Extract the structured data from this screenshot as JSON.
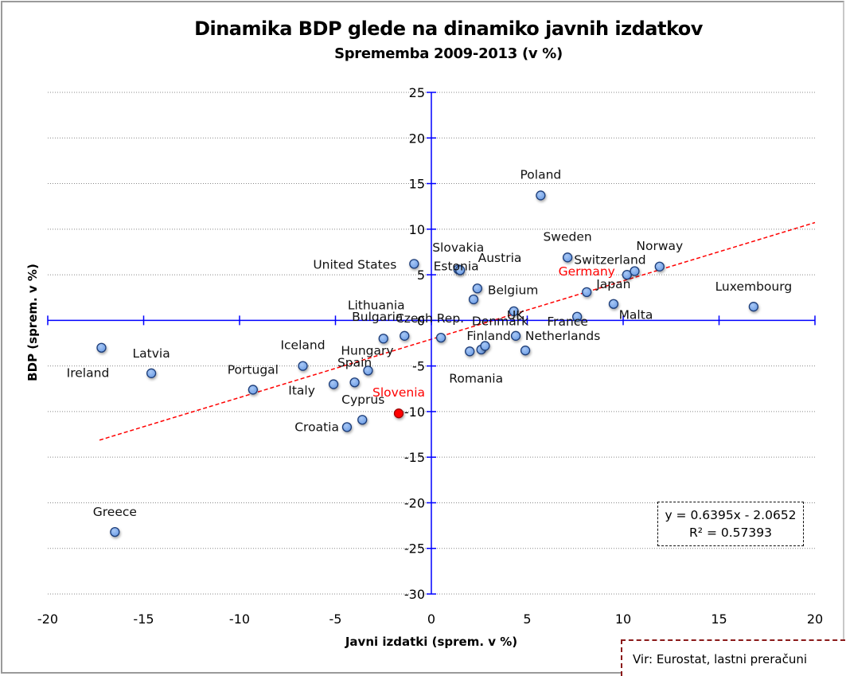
{
  "chart_data": {
    "type": "scatter",
    "title": "Dinamika BDP glede na dinamiko javnih izdatkov",
    "subtitle": "Sprememba 2009-2013 (v %)",
    "xlabel": "Javni izdatki (sprem. v %)",
    "ylabel": "BDP (sprem. v %)",
    "xlim": [
      -20,
      20
    ],
    "ylim": [
      -30,
      25
    ],
    "x_ticks": [
      -20,
      -15,
      -10,
      -5,
      0,
      5,
      10,
      15,
      20
    ],
    "y_ticks": [
      25,
      20,
      15,
      10,
      5,
      0,
      -5,
      -10,
      -15,
      -20,
      -25,
      -30
    ],
    "grid": "horizontal dotted",
    "points": [
      {
        "label": "Ireland",
        "x": -17.2,
        "y": -3.0
      },
      {
        "label": "Latvia",
        "x": -14.6,
        "y": -5.8
      },
      {
        "label": "Greece",
        "x": -16.5,
        "y": -23.2
      },
      {
        "label": "Portugal",
        "x": -9.3,
        "y": -7.6
      },
      {
        "label": "Iceland",
        "x": -6.7,
        "y": -5.0
      },
      {
        "label": "Italy",
        "x": -5.1,
        "y": -7.0
      },
      {
        "label": "Spain",
        "x": -4.0,
        "y": -6.8
      },
      {
        "label": "Hungary",
        "x": -3.3,
        "y": -5.5
      },
      {
        "label": "Croatia",
        "x": -4.4,
        "y": -11.7
      },
      {
        "label": "Cyprus",
        "x": -3.6,
        "y": -10.9
      },
      {
        "label": "Slovenia",
        "x": -1.7,
        "y": -10.2,
        "highlight": true
      },
      {
        "label": "Lithuania",
        "x": -2.5,
        "y": -2.0
      },
      {
        "label": "Bulgaria",
        "x": -1.4,
        "y": -1.7
      },
      {
        "label": "United States",
        "x": -0.9,
        "y": 6.2
      },
      {
        "label": "Czech Rep.",
        "x": 0.5,
        "y": -1.9
      },
      {
        "label": "Slovakia",
        "x": 1.4,
        "y": 5.6
      },
      {
        "label": "Estonia",
        "x": 1.5,
        "y": 5.5
      },
      {
        "label": "Austria",
        "x": 2.2,
        "y": 2.3
      },
      {
        "label": "Belgium",
        "x": 2.4,
        "y": 3.5
      },
      {
        "label": "Romania",
        "x": 2.0,
        "y": -3.4
      },
      {
        "label": "",
        "x": 2.6,
        "y": -3.2
      },
      {
        "label": "Denmark",
        "x": 2.8,
        "y": -2.8
      },
      {
        "label": "UK",
        "x": 4.3,
        "y": 1.0
      },
      {
        "label": "Finland",
        "x": 4.4,
        "y": -1.7
      },
      {
        "label": "Netherlands",
        "x": 4.9,
        "y": -3.3
      },
      {
        "label": "Poland",
        "x": 5.7,
        "y": 13.7
      },
      {
        "label": "Sweden",
        "x": 7.1,
        "y": 6.9
      },
      {
        "label": "France",
        "x": 7.6,
        "y": 0.4
      },
      {
        "label": "Germany",
        "x": 8.1,
        "y": 3.1,
        "label_highlight": true
      },
      {
        "label": "Malta",
        "x": 9.5,
        "y": 1.8
      },
      {
        "label": "Japan",
        "x": 10.2,
        "y": 5.0
      },
      {
        "label": "Switzerland",
        "x": 10.6,
        "y": 5.4
      },
      {
        "label": "Norway",
        "x": 11.9,
        "y": 5.9
      },
      {
        "label": "Luxembourg",
        "x": 16.8,
        "y": 1.5
      }
    ],
    "trendline": {
      "type": "linear",
      "slope": 0.6395,
      "intercept": -2.0652,
      "x_range": [
        -17.3,
        20
      ],
      "equation_text": "y = 0.6395x - 2.0652",
      "r2_text": "R² = 0.57393"
    },
    "colors": {
      "point_fill": "#6f9fe6",
      "point_stroke": "#1d3c78",
      "highlight": "#ff0000",
      "axis": "#0000ff",
      "trendline": "#ff0000",
      "grid": "#888888"
    }
  },
  "source_note": "Vir: Eurostat, lastni preračuni"
}
